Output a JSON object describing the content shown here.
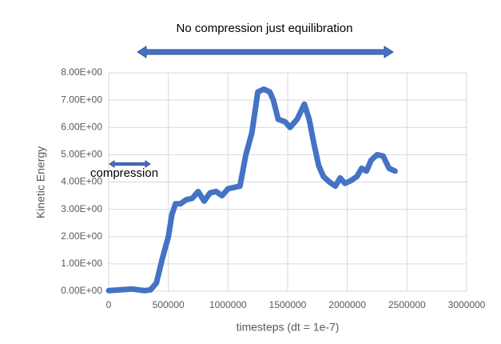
{
  "chart_data": {
    "type": "line",
    "x_label": "timesteps (dt = 1e-7)",
    "y_label": "Kinetic Energy",
    "annotations": [
      {
        "text": "No compression just equilibration"
      },
      {
        "text": "compression"
      }
    ],
    "color": "#4472c4",
    "grid": true,
    "x": [
      0,
      100000,
      200000,
      250000,
      300000,
      350000,
      400000,
      450000,
      500000,
      530000,
      560000,
      600000,
      650000,
      700000,
      750000,
      800000,
      850000,
      900000,
      950000,
      1000000,
      1050000,
      1100000,
      1150000,
      1200000,
      1250000,
      1300000,
      1350000,
      1380000,
      1420000,
      1480000,
      1520000,
      1580000,
      1640000,
      1680000,
      1720000,
      1760000,
      1800000,
      1850000,
      1900000,
      1940000,
      1980000,
      2030000,
      2080000,
      2120000,
      2160000,
      2200000,
      2250000,
      2300000,
      2350000,
      2400000
    ],
    "values": [
      0.02,
      0.05,
      0.08,
      0.05,
      0.02,
      0.05,
      0.3,
      1.2,
      2.0,
      2.8,
      3.2,
      3.2,
      3.35,
      3.4,
      3.65,
      3.3,
      3.6,
      3.65,
      3.5,
      3.75,
      3.8,
      3.85,
      5.0,
      5.8,
      7.3,
      7.4,
      7.3,
      7.0,
      6.3,
      6.2,
      6.0,
      6.3,
      6.85,
      6.3,
      5.4,
      4.6,
      4.2,
      4.0,
      3.85,
      4.15,
      3.95,
      4.05,
      4.2,
      4.5,
      4.4,
      4.8,
      5.0,
      4.95,
      4.5,
      4.4
    ],
    "xlim": [
      0,
      3000000
    ],
    "xticks": [
      0,
      500000,
      1000000,
      1500000,
      2000000,
      2500000,
      3000000
    ],
    "ylim": [
      0,
      8
    ],
    "yticks": [
      {
        "value": 0,
        "label": "0.00E+00"
      },
      {
        "value": 1,
        "label": "1.00E+00"
      },
      {
        "value": 2,
        "label": "2.00E+00"
      },
      {
        "value": 3,
        "label": "3.00E+00"
      },
      {
        "value": 4,
        "label": "4.00E+00"
      },
      {
        "value": 5,
        "label": "5.00E+00"
      },
      {
        "value": 6,
        "label": "6.00E+00"
      },
      {
        "value": 7,
        "label": "7.00E+00"
      },
      {
        "value": 8,
        "label": "8.00E+00"
      }
    ]
  }
}
